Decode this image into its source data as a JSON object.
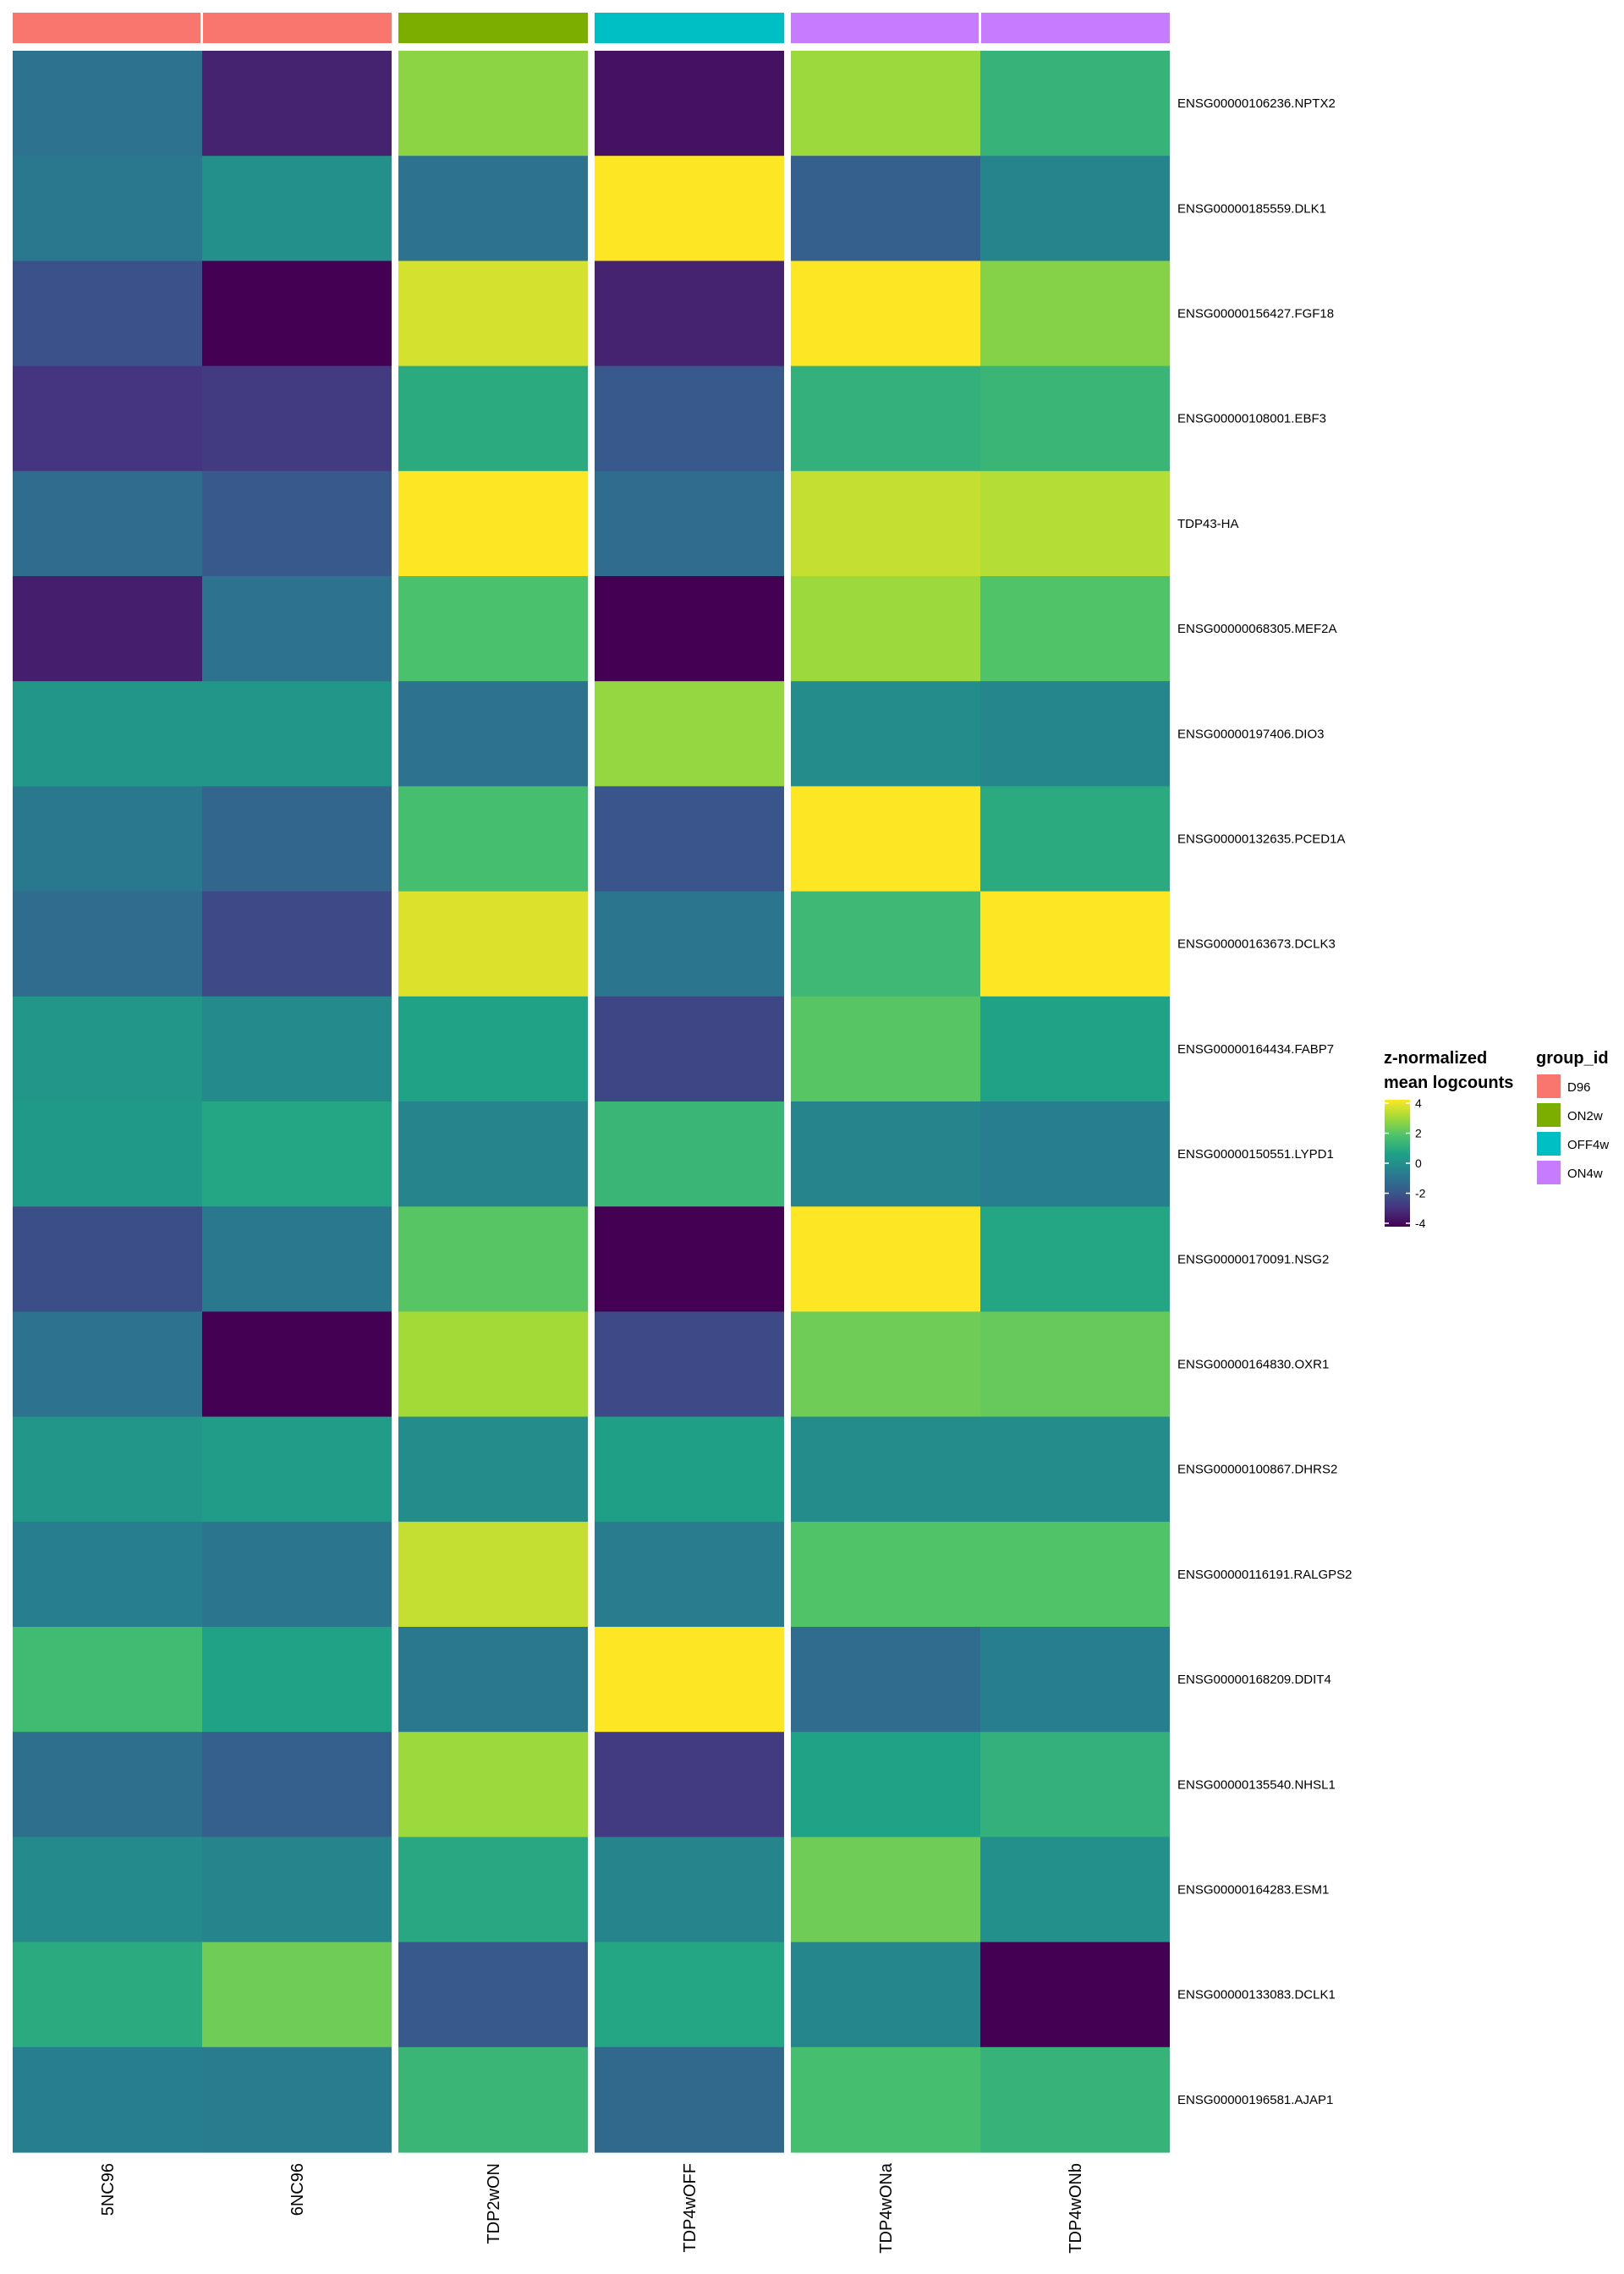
{
  "chart_data": {
    "type": "heatmap",
    "title": "",
    "columns": [
      "5NC96",
      "6NC96",
      "TDP2wON",
      "TDP4wOFF",
      "TDP4wONa",
      "TDP4wONb"
    ],
    "column_groups": [
      "D96",
      "D96",
      "ON2w",
      "OFF4w",
      "ON4w",
      "ON4w"
    ],
    "rows": [
      "ENSG00000106236.NPTX2",
      "ENSG00000185559.DLK1",
      "ENSG00000156427.FGF18",
      "ENSG00000108001.EBF3",
      "TDP43-HA",
      "ENSG00000068305.MEF2A",
      "ENSG00000197406.DIO3",
      "ENSG00000132635.PCED1A",
      "ENSG00000163673.DCLK3",
      "ENSG00000164434.FABP7",
      "ENSG00000150551.LYPD1",
      "ENSG00000170091.NSG2",
      "ENSG00000164830.OXR1",
      "ENSG00000100867.DHRS2",
      "ENSG00000116191.RALGPS2",
      "ENSG00000168209.DDIT4",
      "ENSG00000135540.NHSL1",
      "ENSG00000164283.ESM1",
      "ENSG00000133083.DCLK1",
      "ENSG00000196581.AJAP1"
    ],
    "values": [
      [
        -1.0,
        -3.2,
        2.6,
        -3.6,
        2.8,
        1.2
      ],
      [
        -0.8,
        0.0,
        -1.0,
        4.0,
        -1.6,
        -0.4
      ],
      [
        -2.0,
        -4.0,
        3.5,
        -3.2,
        4.0,
        2.5
      ],
      [
        -2.8,
        -2.6,
        0.9,
        -1.8,
        1.1,
        1.3
      ],
      [
        -1.2,
        -1.8,
        4.0,
        -1.2,
        3.3,
        3.1
      ],
      [
        -3.3,
        -1.0,
        1.7,
        -4.0,
        2.8,
        1.8
      ],
      [
        0.2,
        0.2,
        -1.0,
        2.7,
        -0.1,
        -0.3
      ],
      [
        -0.8,
        -1.4,
        1.6,
        -1.9,
        4.0,
        0.9
      ],
      [
        -1.2,
        -2.2,
        3.6,
        -0.9,
        1.4,
        4.0
      ],
      [
        0.2,
        -0.2,
        0.6,
        -2.3,
        1.9,
        0.6
      ],
      [
        0.3,
        0.7,
        -0.4,
        1.3,
        -0.4,
        -0.6
      ],
      [
        -2.1,
        -0.8,
        1.9,
        -4.0,
        4.0,
        0.7
      ],
      [
        -1.0,
        -4.0,
        2.9,
        -2.2,
        2.2,
        2.1
      ],
      [
        0.2,
        0.4,
        -0.1,
        0.5,
        -0.1,
        -0.1
      ],
      [
        -0.6,
        -0.9,
        3.3,
        -0.7,
        1.8,
        1.8
      ],
      [
        1.5,
        0.6,
        -0.8,
        4.0,
        -1.2,
        -0.6
      ],
      [
        -1.1,
        -1.6,
        2.8,
        -2.6,
        0.6,
        1.1
      ],
      [
        -0.2,
        -0.4,
        0.8,
        -0.4,
        2.2,
        0.0
      ],
      [
        0.9,
        2.2,
        -1.8,
        0.7,
        -0.3,
        -4.0
      ],
      [
        -0.6,
        -0.7,
        1.3,
        -1.3,
        1.6,
        1.2
      ]
    ],
    "color_scale": {
      "name": "viridis",
      "range": [
        -4,
        4
      ],
      "stops": [
        "#440154",
        "#46327e",
        "#365c8d",
        "#277f8e",
        "#1fa187",
        "#4ac16d",
        "#a0da39",
        "#fde725"
      ]
    },
    "legend": {
      "placement": "right",
      "colorbar_title_line1": "z-normalized",
      "colorbar_title_line2": "mean logcounts",
      "colorbar_ticks": [
        4,
        2,
        0,
        -2,
        -4
      ],
      "group_title": "group_id",
      "groups": [
        {
          "label": "D96",
          "color": "#f8766d"
        },
        {
          "label": "ON2w",
          "color": "#7cae00"
        },
        {
          "label": "OFF4w",
          "color": "#00bfc4"
        },
        {
          "label": "ON4w",
          "color": "#c77cff"
        }
      ]
    }
  }
}
